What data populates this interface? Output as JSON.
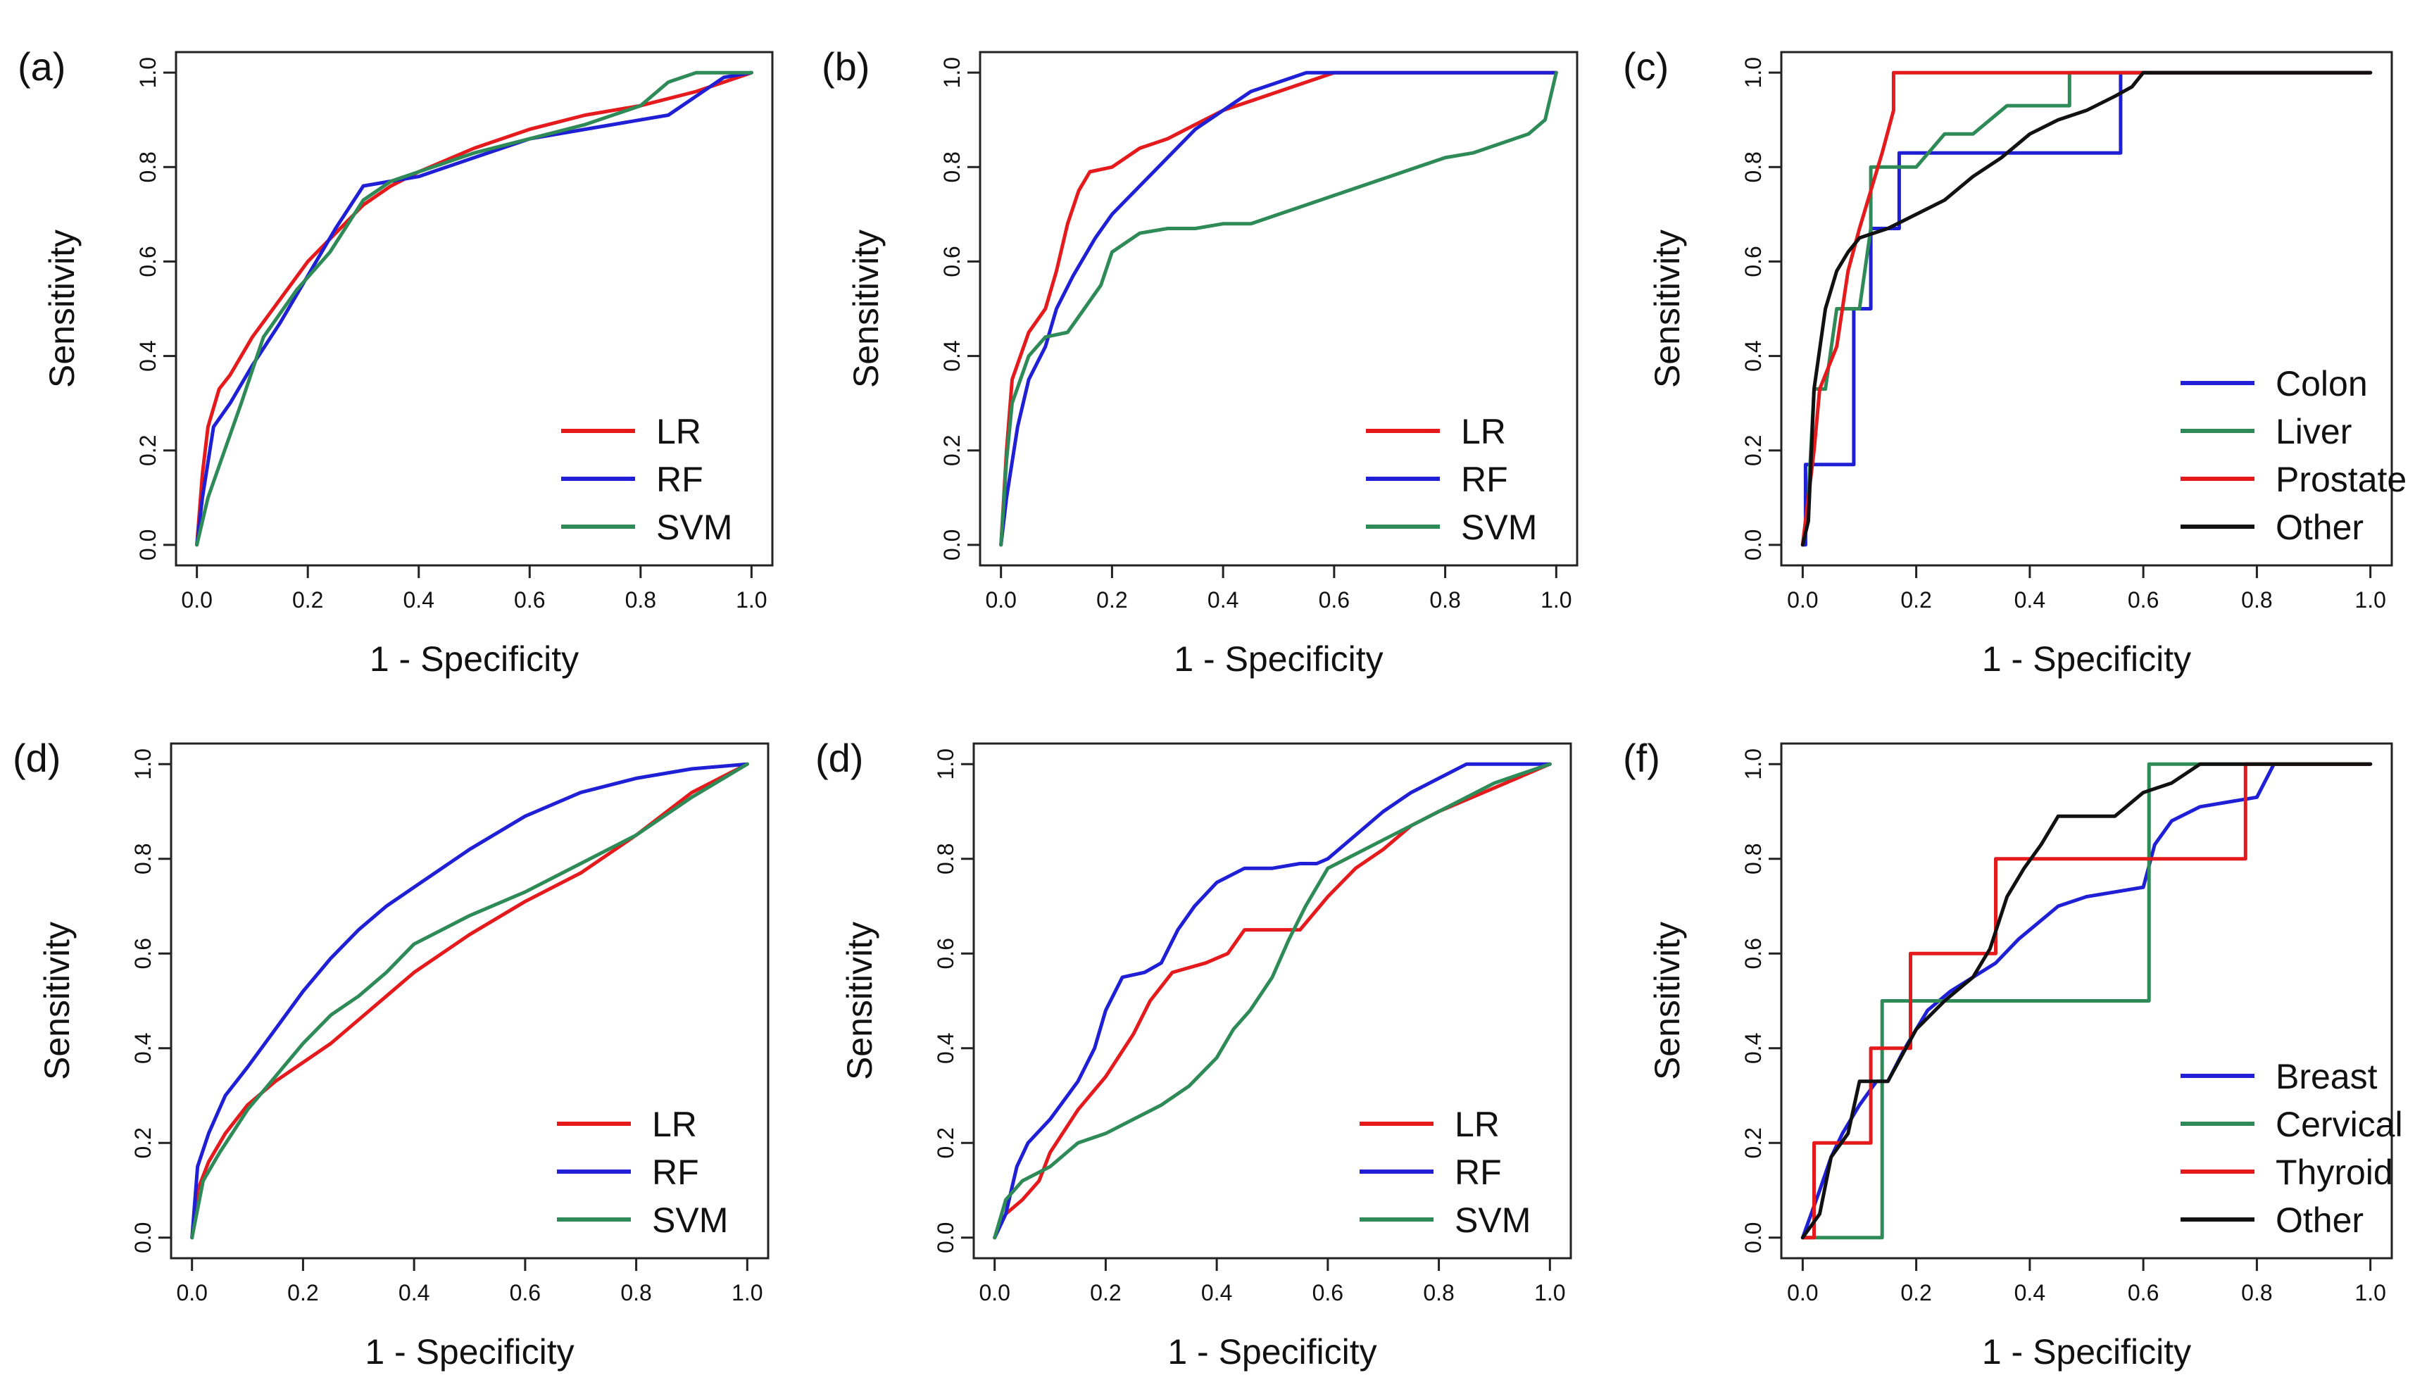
{
  "colors": {
    "red": "#e41a1c",
    "blue": "#1f1fd6",
    "green": "#2e8b57",
    "black": "#111111"
  },
  "chart_data": [
    {
      "panel": "(a)",
      "type": "line",
      "xlabel": "1 - Specificity",
      "ylabel": "Sensitivity",
      "xlim": [
        0,
        1
      ],
      "ylim": [
        0,
        1
      ],
      "xticks": [
        "0.0",
        "0.2",
        "0.4",
        "0.6",
        "0.8",
        "1.0"
      ],
      "yticks": [
        "0.0",
        "0.2",
        "0.4",
        "0.6",
        "0.8",
        "1.0"
      ],
      "legend_position": "bottom-right",
      "series": [
        {
          "name": "LR",
          "color": "#e41a1c",
          "x": [
            0,
            0.01,
            0.02,
            0.04,
            0.06,
            0.1,
            0.15,
            0.2,
            0.25,
            0.3,
            0.35,
            0.4,
            0.5,
            0.6,
            0.7,
            0.8,
            0.9,
            0.95,
            1.0
          ],
          "y": [
            0,
            0.15,
            0.25,
            0.33,
            0.36,
            0.44,
            0.52,
            0.6,
            0.66,
            0.72,
            0.76,
            0.79,
            0.84,
            0.88,
            0.91,
            0.93,
            0.96,
            0.98,
            1.0
          ]
        },
        {
          "name": "RF",
          "color": "#1f1fd6",
          "x": [
            0,
            0.01,
            0.03,
            0.06,
            0.1,
            0.15,
            0.2,
            0.25,
            0.3,
            0.35,
            0.4,
            0.5,
            0.6,
            0.7,
            0.8,
            0.85,
            0.9,
            0.95,
            1.0
          ],
          "y": [
            0,
            0.1,
            0.25,
            0.3,
            0.38,
            0.47,
            0.57,
            0.67,
            0.76,
            0.77,
            0.78,
            0.82,
            0.86,
            0.88,
            0.9,
            0.91,
            0.95,
            0.99,
            1.0
          ]
        },
        {
          "name": "SVM",
          "color": "#2e8b57",
          "x": [
            0,
            0.02,
            0.05,
            0.08,
            0.12,
            0.18,
            0.24,
            0.3,
            0.35,
            0.4,
            0.5,
            0.6,
            0.7,
            0.8,
            0.85,
            0.9,
            1.0
          ],
          "y": [
            0,
            0.1,
            0.2,
            0.3,
            0.44,
            0.54,
            0.62,
            0.73,
            0.77,
            0.79,
            0.83,
            0.86,
            0.89,
            0.93,
            0.98,
            1.0,
            1.0
          ]
        }
      ]
    },
    {
      "panel": "(b)",
      "type": "line",
      "xlabel": "1 - Specificity",
      "ylabel": "Sensitivity",
      "xlim": [
        0,
        1
      ],
      "ylim": [
        0,
        1
      ],
      "xticks": [
        "0.0",
        "0.2",
        "0.4",
        "0.6",
        "0.8",
        "1.0"
      ],
      "yticks": [
        "0.0",
        "0.2",
        "0.4",
        "0.6",
        "0.8",
        "1.0"
      ],
      "legend_position": "bottom-right",
      "series": [
        {
          "name": "LR",
          "color": "#e41a1c",
          "x": [
            0,
            0.01,
            0.02,
            0.05,
            0.08,
            0.1,
            0.12,
            0.14,
            0.16,
            0.2,
            0.25,
            0.3,
            0.35,
            0.4,
            0.45,
            0.5,
            0.55,
            0.6,
            0.65,
            1.0
          ],
          "y": [
            0,
            0.2,
            0.35,
            0.45,
            0.5,
            0.58,
            0.68,
            0.75,
            0.79,
            0.8,
            0.84,
            0.86,
            0.89,
            0.92,
            0.94,
            0.96,
            0.98,
            1.0,
            1.0,
            1.0
          ]
        },
        {
          "name": "RF",
          "color": "#1f1fd6",
          "x": [
            0,
            0.01,
            0.03,
            0.05,
            0.08,
            0.1,
            0.13,
            0.17,
            0.2,
            0.25,
            0.3,
            0.35,
            0.4,
            0.45,
            0.5,
            0.55,
            0.6,
            0.65,
            0.7,
            1.0
          ],
          "y": [
            0,
            0.1,
            0.25,
            0.35,
            0.42,
            0.5,
            0.57,
            0.65,
            0.7,
            0.76,
            0.82,
            0.88,
            0.92,
            0.96,
            0.98,
            1.0,
            1.0,
            1.0,
            1.0,
            1.0
          ]
        },
        {
          "name": "SVM",
          "color": "#2e8b57",
          "x": [
            0,
            0.01,
            0.02,
            0.05,
            0.08,
            0.12,
            0.15,
            0.18,
            0.2,
            0.25,
            0.3,
            0.35,
            0.4,
            0.45,
            0.5,
            0.55,
            0.6,
            0.65,
            0.7,
            0.75,
            0.8,
            0.85,
            0.9,
            0.95,
            0.98,
            1.0
          ],
          "y": [
            0,
            0.18,
            0.3,
            0.4,
            0.44,
            0.45,
            0.5,
            0.55,
            0.62,
            0.66,
            0.67,
            0.67,
            0.68,
            0.68,
            0.7,
            0.72,
            0.74,
            0.76,
            0.78,
            0.8,
            0.82,
            0.83,
            0.85,
            0.87,
            0.9,
            1.0
          ]
        }
      ]
    },
    {
      "panel": "(c)",
      "type": "line",
      "xlabel": "1 - Specificity",
      "ylabel": "Sensitivity",
      "xlim": [
        0,
        1
      ],
      "ylim": [
        0,
        1
      ],
      "xticks": [
        "0.0",
        "0.2",
        "0.4",
        "0.6",
        "0.8",
        "1.0"
      ],
      "yticks": [
        "0.0",
        "0.2",
        "0.4",
        "0.6",
        "0.8",
        "1.0"
      ],
      "legend_position": "bottom-right",
      "series": [
        {
          "name": "Colon",
          "color": "#1f1fd6",
          "x": [
            0,
            0.005,
            0.005,
            0.09,
            0.09,
            0.12,
            0.12,
            0.17,
            0.17,
            0.56,
            0.56,
            1.0
          ],
          "y": [
            0,
            0,
            0.17,
            0.17,
            0.5,
            0.5,
            0.67,
            0.67,
            0.83,
            0.83,
            1.0,
            1.0
          ]
        },
        {
          "name": "Liver",
          "color": "#2e8b57",
          "x": [
            0,
            0.01,
            0.02,
            0.04,
            0.06,
            0.1,
            0.12,
            0.12,
            0.17,
            0.2,
            0.25,
            0.3,
            0.36,
            0.4,
            0.47,
            0.47,
            1.0
          ],
          "y": [
            0,
            0.1,
            0.33,
            0.33,
            0.5,
            0.5,
            0.67,
            0.8,
            0.8,
            0.8,
            0.87,
            0.87,
            0.93,
            0.93,
            0.93,
            1.0,
            1.0
          ]
        },
        {
          "name": "Prostate",
          "color": "#e41a1c",
          "x": [
            0,
            0.02,
            0.03,
            0.06,
            0.08,
            0.1,
            0.12,
            0.14,
            0.16,
            0.16,
            1.0
          ],
          "y": [
            0,
            0.2,
            0.33,
            0.42,
            0.58,
            0.67,
            0.75,
            0.83,
            0.92,
            1.0,
            1.0
          ]
        },
        {
          "name": "Other",
          "color": "#111111",
          "x": [
            0,
            0.01,
            0.02,
            0.04,
            0.06,
            0.08,
            0.1,
            0.15,
            0.2,
            0.25,
            0.3,
            0.35,
            0.4,
            0.45,
            0.5,
            0.55,
            0.58,
            0.6,
            1.0
          ],
          "y": [
            0,
            0.05,
            0.33,
            0.5,
            0.58,
            0.62,
            0.65,
            0.67,
            0.7,
            0.73,
            0.78,
            0.82,
            0.87,
            0.9,
            0.92,
            0.95,
            0.97,
            1.0,
            1.0
          ]
        }
      ]
    },
    {
      "panel": "(d)",
      "type": "line",
      "xlabel": "1 - Specificity",
      "ylabel": "Sensitivity",
      "xlim": [
        0,
        1
      ],
      "ylim": [
        0,
        1
      ],
      "xticks": [
        "0.0",
        "0.2",
        "0.4",
        "0.6",
        "0.8",
        "1.0"
      ],
      "yticks": [
        "0.0",
        "0.2",
        "0.4",
        "0.6",
        "0.8",
        "1.0"
      ],
      "legend_position": "bottom-right",
      "series": [
        {
          "name": "LR",
          "color": "#e41a1c",
          "x": [
            0,
            0.01,
            0.03,
            0.06,
            0.1,
            0.15,
            0.2,
            0.25,
            0.3,
            0.35,
            0.4,
            0.5,
            0.6,
            0.7,
            0.8,
            0.9,
            1.0
          ],
          "y": [
            0,
            0.1,
            0.16,
            0.22,
            0.28,
            0.33,
            0.37,
            0.41,
            0.46,
            0.51,
            0.56,
            0.64,
            0.71,
            0.77,
            0.85,
            0.94,
            1.0
          ]
        },
        {
          "name": "RF",
          "color": "#1f1fd6",
          "x": [
            0,
            0.01,
            0.03,
            0.06,
            0.1,
            0.15,
            0.2,
            0.25,
            0.3,
            0.35,
            0.4,
            0.5,
            0.6,
            0.7,
            0.8,
            0.9,
            1.0
          ],
          "y": [
            0,
            0.15,
            0.22,
            0.3,
            0.36,
            0.44,
            0.52,
            0.59,
            0.65,
            0.7,
            0.74,
            0.82,
            0.89,
            0.94,
            0.97,
            0.99,
            1.0
          ]
        },
        {
          "name": "SVM",
          "color": "#2e8b57",
          "x": [
            0,
            0.02,
            0.05,
            0.1,
            0.15,
            0.2,
            0.25,
            0.3,
            0.35,
            0.4,
            0.45,
            0.5,
            0.6,
            0.7,
            0.8,
            0.9,
            1.0
          ],
          "y": [
            0,
            0.12,
            0.18,
            0.27,
            0.34,
            0.41,
            0.47,
            0.51,
            0.56,
            0.62,
            0.65,
            0.68,
            0.73,
            0.79,
            0.85,
            0.93,
            1.0
          ]
        }
      ]
    },
    {
      "panel": "(d)",
      "type": "line",
      "xlabel": "1 - Specificity",
      "ylabel": "Sensitivity",
      "xlim": [
        0,
        1
      ],
      "ylim": [
        0,
        1
      ],
      "xticks": [
        "0.0",
        "0.2",
        "0.4",
        "0.6",
        "0.8",
        "1.0"
      ],
      "yticks": [
        "0.0",
        "0.2",
        "0.4",
        "0.6",
        "0.8",
        "1.0"
      ],
      "legend_position": "bottom-right",
      "series": [
        {
          "name": "LR",
          "color": "#e41a1c",
          "x": [
            0,
            0.02,
            0.05,
            0.08,
            0.1,
            0.15,
            0.2,
            0.25,
            0.28,
            0.32,
            0.35,
            0.38,
            0.42,
            0.45,
            0.5,
            0.55,
            0.6,
            0.65,
            0.7,
            0.75,
            0.8,
            0.9,
            1.0
          ],
          "y": [
            0,
            0.05,
            0.08,
            0.12,
            0.18,
            0.27,
            0.34,
            0.43,
            0.5,
            0.56,
            0.57,
            0.58,
            0.6,
            0.65,
            0.65,
            0.65,
            0.72,
            0.78,
            0.82,
            0.87,
            0.9,
            0.95,
            1.0
          ]
        },
        {
          "name": "RF",
          "color": "#1f1fd6",
          "x": [
            0,
            0.02,
            0.04,
            0.06,
            0.1,
            0.15,
            0.18,
            0.2,
            0.23,
            0.27,
            0.3,
            0.33,
            0.36,
            0.4,
            0.45,
            0.5,
            0.55,
            0.58,
            0.6,
            0.65,
            0.7,
            0.75,
            0.8,
            0.85,
            0.9,
            1.0
          ],
          "y": [
            0,
            0.05,
            0.15,
            0.2,
            0.25,
            0.33,
            0.4,
            0.48,
            0.55,
            0.56,
            0.58,
            0.65,
            0.7,
            0.75,
            0.78,
            0.78,
            0.79,
            0.79,
            0.8,
            0.85,
            0.9,
            0.94,
            0.97,
            1.0,
            1.0,
            1.0
          ]
        },
        {
          "name": "SVM",
          "color": "#2e8b57",
          "x": [
            0,
            0.02,
            0.05,
            0.1,
            0.15,
            0.2,
            0.25,
            0.3,
            0.35,
            0.4,
            0.43,
            0.46,
            0.5,
            0.53,
            0.56,
            0.6,
            0.65,
            0.7,
            0.75,
            0.8,
            0.9,
            1.0
          ],
          "y": [
            0,
            0.08,
            0.12,
            0.15,
            0.2,
            0.22,
            0.25,
            0.28,
            0.32,
            0.38,
            0.44,
            0.48,
            0.55,
            0.63,
            0.7,
            0.78,
            0.81,
            0.84,
            0.87,
            0.9,
            0.96,
            1.0
          ]
        }
      ]
    },
    {
      "panel": "(f)",
      "type": "line",
      "xlabel": "1 - Specificity",
      "ylabel": "Sensitivity",
      "xlim": [
        0,
        1
      ],
      "ylim": [
        0,
        1
      ],
      "xticks": [
        "0.0",
        "0.2",
        "0.4",
        "0.6",
        "0.8",
        "1.0"
      ],
      "yticks": [
        "0.0",
        "0.2",
        "0.4",
        "0.6",
        "0.8",
        "1.0"
      ],
      "legend_position": "bottom-right",
      "series": [
        {
          "name": "Breast",
          "color": "#1f1fd6",
          "x": [
            0,
            0.03,
            0.05,
            0.07,
            0.1,
            0.13,
            0.15,
            0.18,
            0.22,
            0.26,
            0.3,
            0.34,
            0.38,
            0.41,
            0.45,
            0.5,
            0.55,
            0.6,
            0.62,
            0.65,
            0.7,
            0.75,
            0.8,
            0.83,
            1.0
          ],
          "y": [
            0,
            0.1,
            0.17,
            0.22,
            0.28,
            0.33,
            0.33,
            0.4,
            0.48,
            0.52,
            0.55,
            0.58,
            0.63,
            0.66,
            0.7,
            0.72,
            0.73,
            0.74,
            0.83,
            0.88,
            0.91,
            0.92,
            0.93,
            1.0,
            1.0
          ]
        },
        {
          "name": "Cervical",
          "color": "#2e8b57",
          "x": [
            0,
            0.14,
            0.14,
            0.61,
            0.61,
            1.0
          ],
          "y": [
            0,
            0,
            0.5,
            0.5,
            1.0,
            1.0
          ]
        },
        {
          "name": "Thyroid",
          "color": "#e41a1c",
          "x": [
            0,
            0.02,
            0.02,
            0.12,
            0.12,
            0.19,
            0.19,
            0.34,
            0.34,
            0.48,
            0.48,
            0.78,
            0.78,
            1.0
          ],
          "y": [
            0,
            0,
            0.2,
            0.2,
            0.4,
            0.4,
            0.6,
            0.6,
            0.8,
            0.8,
            0.8,
            0.8,
            1.0,
            1.0
          ]
        },
        {
          "name": "Other",
          "color": "#111111",
          "x": [
            0,
            0.03,
            0.05,
            0.08,
            0.1,
            0.15,
            0.2,
            0.25,
            0.3,
            0.33,
            0.36,
            0.39,
            0.42,
            0.45,
            0.5,
            0.55,
            0.6,
            0.65,
            0.7,
            1.0
          ],
          "y": [
            0,
            0.05,
            0.17,
            0.22,
            0.33,
            0.33,
            0.44,
            0.5,
            0.55,
            0.61,
            0.72,
            0.78,
            0.83,
            0.89,
            0.89,
            0.89,
            0.94,
            0.96,
            1.0,
            1.0
          ]
        }
      ]
    }
  ]
}
